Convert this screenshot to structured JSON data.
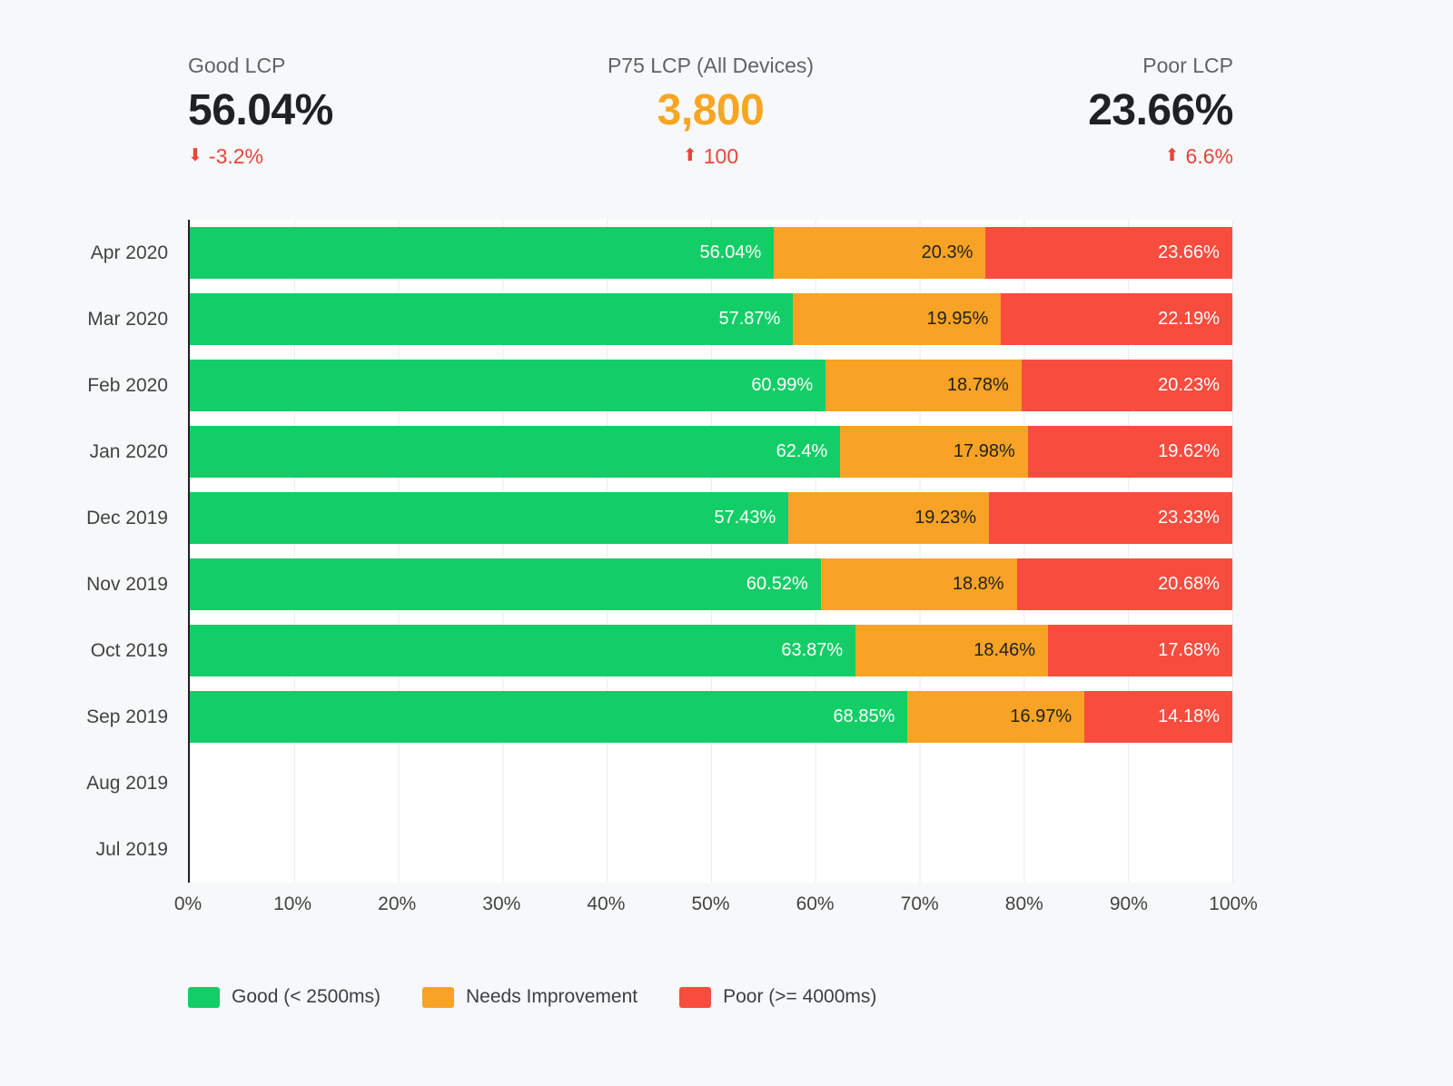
{
  "kpis": {
    "good": {
      "label": "Good LCP",
      "value": "56.04%",
      "value_color": "#202124",
      "arrow_icon": "⬇",
      "delta": "-3.2%",
      "delta_color": "#e8453c"
    },
    "p75": {
      "label": "P75 LCP (All Devices)",
      "value": "3,800",
      "value_color": "#f6a623",
      "arrow_icon": "⬆",
      "delta": "100",
      "delta_color": "#e8453c"
    },
    "poor": {
      "label": "Poor LCP",
      "value": "23.66%",
      "value_color": "#202124",
      "arrow_icon": "⬆",
      "delta": "6.6%",
      "delta_color": "#e8453c"
    }
  },
  "chart_data": {
    "type": "bar",
    "orientation": "horizontal",
    "stacked": true,
    "title": "",
    "xlabel": "",
    "ylabel": "",
    "xlim": [
      0,
      100
    ],
    "grid": true,
    "legend_position": "bottom",
    "value_suffix": "%",
    "categories": [
      "Apr 2020",
      "Mar 2020",
      "Feb 2020",
      "Jan 2020",
      "Dec 2019",
      "Nov 2019",
      "Oct 2019",
      "Sep 2019",
      "Aug 2019",
      "Jul 2019"
    ],
    "series": [
      {
        "name": "Good (< 2500ms)",
        "color": "#13ce66",
        "label_color": "#ffffff",
        "values": [
          56.04,
          57.87,
          60.99,
          62.4,
          57.43,
          60.52,
          63.87,
          68.85,
          null,
          null
        ]
      },
      {
        "name": "Needs Improvement",
        "color": "#f8a325",
        "label_color": "#212121",
        "values": [
          20.3,
          19.95,
          18.78,
          17.98,
          19.23,
          18.8,
          18.46,
          16.97,
          null,
          null
        ]
      },
      {
        "name": "Poor (>= 4000ms)",
        "color": "#f84c3e",
        "label_color": "#ffffff",
        "values": [
          23.66,
          22.19,
          20.23,
          19.62,
          23.33,
          20.68,
          17.68,
          14.18,
          null,
          null
        ]
      }
    ],
    "x_ticks": [
      "0%",
      "10%",
      "20%",
      "30%",
      "40%",
      "50%",
      "60%",
      "70%",
      "80%",
      "90%",
      "100%"
    ]
  }
}
